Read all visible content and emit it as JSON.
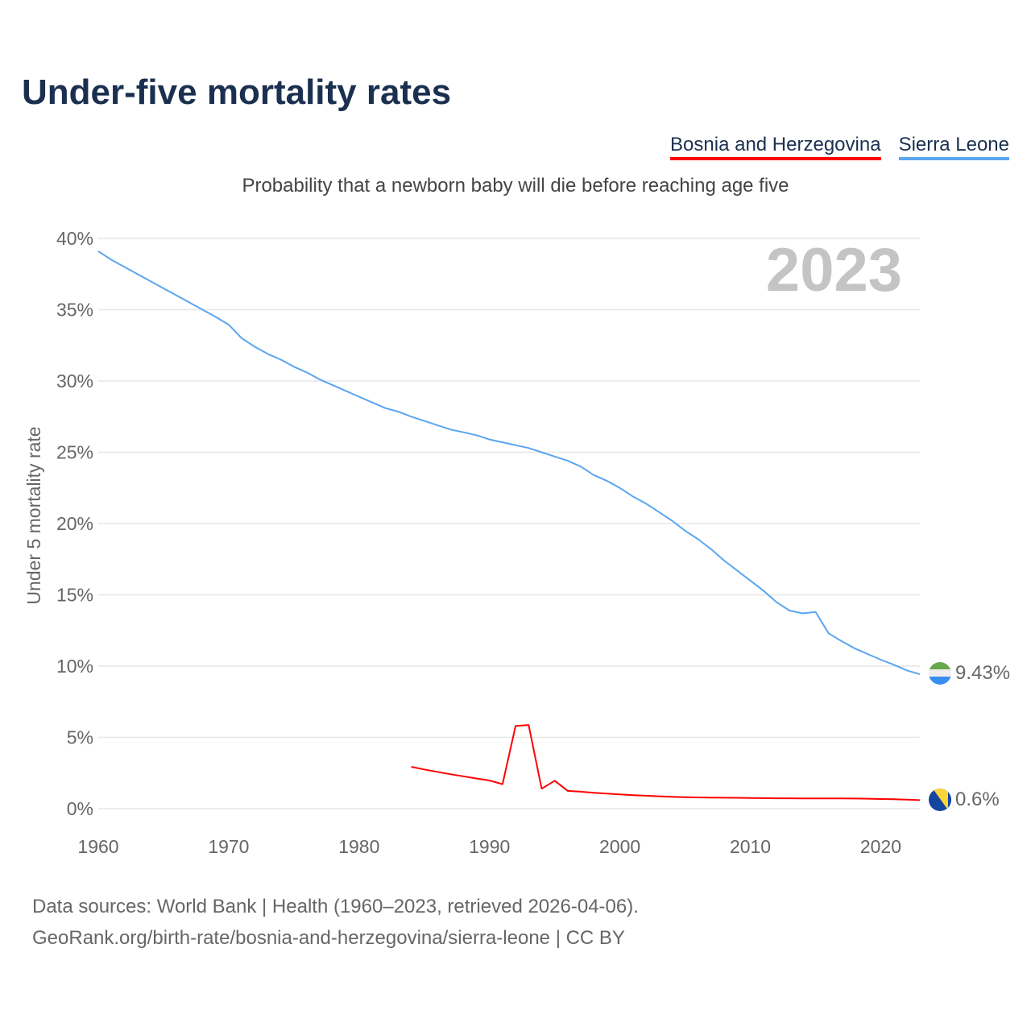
{
  "title": "Under-five mortality rates",
  "subtitle": "Probability that a newborn baby will die before reaching age five",
  "legend": [
    {
      "label": "Bosnia and Herzegovina",
      "color": "#ff0000"
    },
    {
      "label": "Sierra Leone",
      "color": "#5aa6ef"
    }
  ],
  "footer": {
    "line1": "Data sources: World Bank | Health (1960–2023, retrieved 2026-04-06).",
    "line2": "GeoRank.org/birth-rate/bosnia-and-herzegovina/sierra-leone | CC BY"
  },
  "chart_data": {
    "type": "line",
    "title": "Under-five mortality rates",
    "ylabel": "Under 5 mortality rate",
    "xlabel": "",
    "year_label": "2023",
    "xlim": [
      1960,
      2023
    ],
    "ylim": [
      0,
      40
    ],
    "x_ticks": [
      "1960",
      "1970",
      "1980",
      "1990",
      "2000",
      "2010",
      "2020"
    ],
    "y_ticks": [
      "0%",
      "5%",
      "10%",
      "15%",
      "20%",
      "25%",
      "30%",
      "35%",
      "40%"
    ],
    "grid": true,
    "series": [
      {
        "name": "Sierra Leone",
        "color": "#5aa6ef",
        "end_label": "9.43%",
        "flag": "sierra-leone-flag",
        "start_year": 1960,
        "values": [
          39.1,
          38.5,
          38.0,
          37.5,
          37.0,
          36.5,
          36.0,
          35.5,
          35.0,
          34.5,
          33.95,
          33.0,
          32.4,
          31.9,
          31.5,
          31.0,
          30.6,
          30.1,
          29.7,
          29.3,
          28.9,
          28.5,
          28.1,
          27.85,
          27.5,
          27.2,
          26.9,
          26.6,
          26.4,
          26.2,
          25.9,
          25.7,
          25.5,
          25.3,
          25.0,
          24.7,
          24.4,
          24.0,
          23.4,
          23.0,
          22.5,
          21.9,
          21.4,
          20.8,
          20.2,
          19.5,
          18.9,
          18.2,
          17.4,
          16.7,
          16.0,
          15.3,
          14.5,
          13.9,
          13.7,
          13.8,
          12.3,
          11.75,
          11.25,
          10.85,
          10.45,
          10.1,
          9.7,
          9.43
        ]
      },
      {
        "name": "Bosnia and Herzegovina",
        "color": "#ff0000",
        "end_label": "0.6%",
        "flag": "bosnia-flag",
        "start_year": 1984,
        "values": [
          2.94,
          2.75,
          2.58,
          2.42,
          2.27,
          2.12,
          1.98,
          1.72,
          5.8,
          5.87,
          1.4,
          1.96,
          1.25,
          1.19,
          1.12,
          1.06,
          1.0,
          0.95,
          0.91,
          0.87,
          0.83,
          0.81,
          0.79,
          0.78,
          0.77,
          0.76,
          0.75,
          0.74,
          0.73,
          0.73,
          0.72,
          0.72,
          0.72,
          0.72,
          0.71,
          0.7,
          0.68,
          0.66,
          0.63,
          0.6
        ]
      }
    ]
  }
}
